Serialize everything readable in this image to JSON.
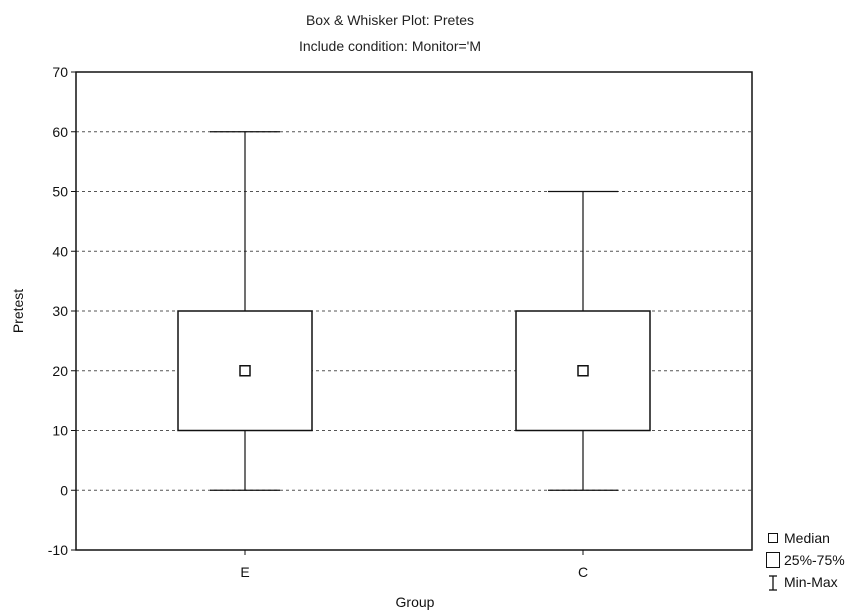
{
  "chart_data": {
    "type": "box",
    "title": "Box & Whisker Plot:  Pretes",
    "subtitle": "Include condition: Monitor='M",
    "xlabel": "Group",
    "ylabel": "Pretest",
    "ylim": [
      -10,
      70
    ],
    "yticks": [
      -10,
      0,
      10,
      20,
      30,
      40,
      50,
      60,
      70
    ],
    "grid": true,
    "categories": [
      "E",
      "C"
    ],
    "boxes": [
      {
        "category": "E",
        "min": 0,
        "q1": 10,
        "median": 20,
        "q3": 30,
        "max": 60
      },
      {
        "category": "C",
        "min": 0,
        "q1": 10,
        "median": 20,
        "q3": 30,
        "max": 50
      }
    ],
    "legend": {
      "position": "bottom-right",
      "items": [
        "Median",
        "25%-75%",
        "Min-Max"
      ]
    }
  }
}
